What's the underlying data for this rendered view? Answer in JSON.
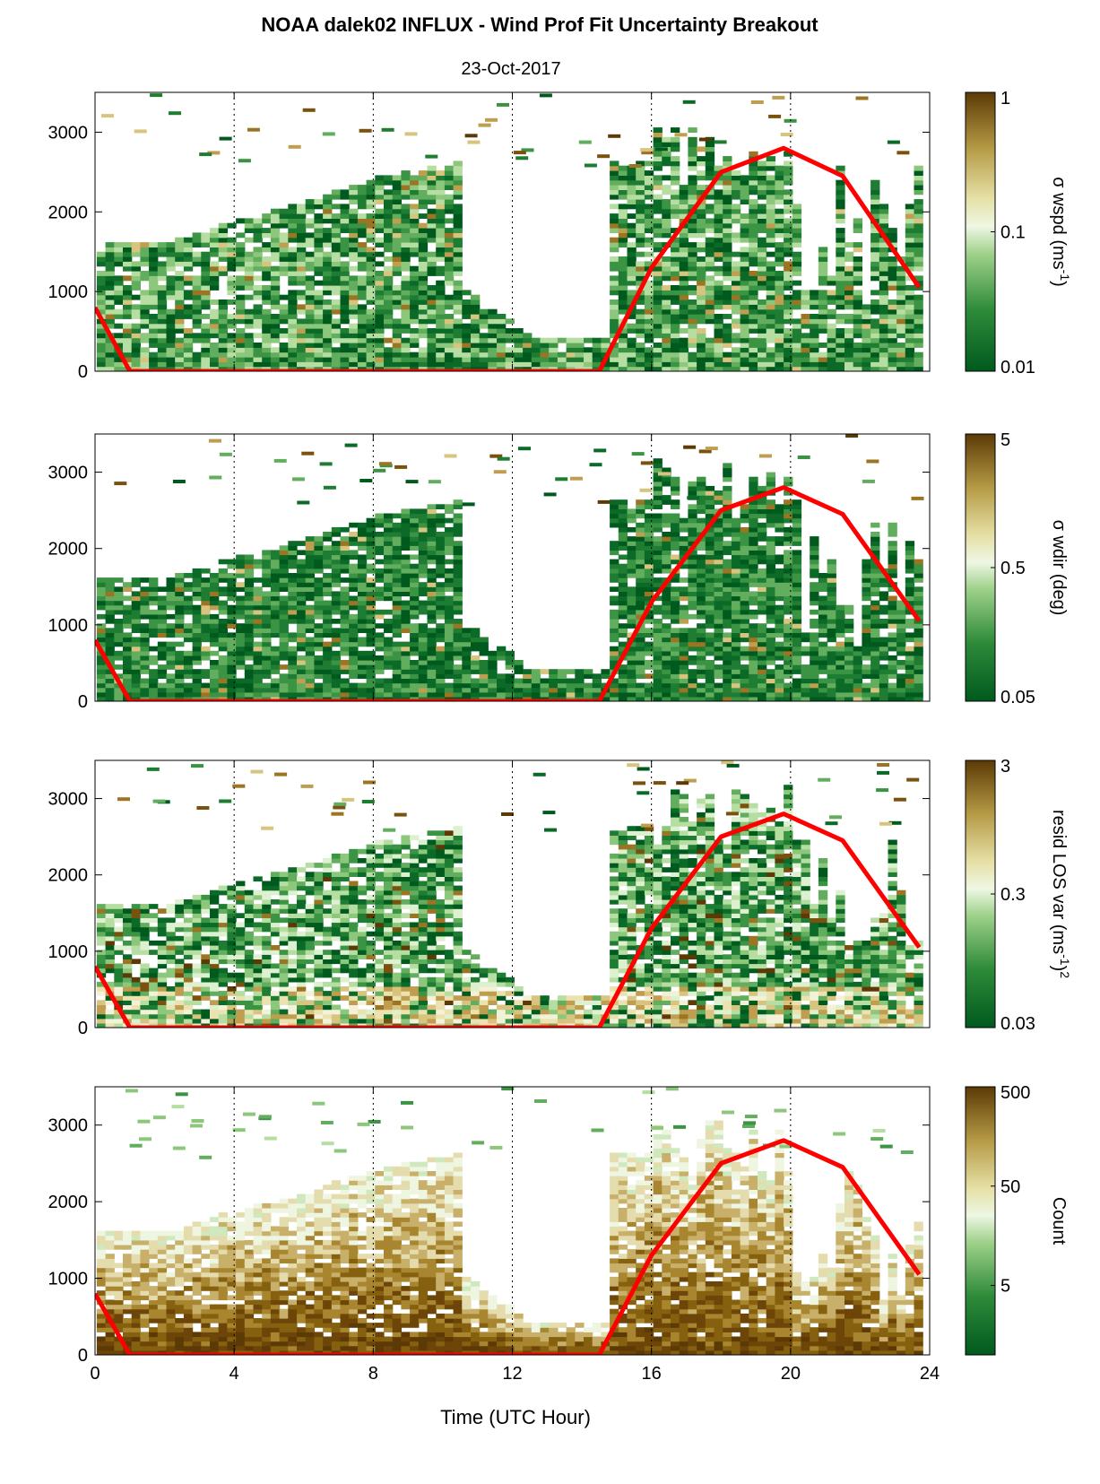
{
  "title": "NOAA dalek02 INFLUX - Wind Prof Fit Uncertainty Breakout",
  "subtitle": "23-Oct-2017",
  "chart_data": [
    {
      "type": "heatmap",
      "xlabel": "Time (UTC Hour)",
      "xlim": [
        0,
        24
      ],
      "x_ticks": [
        "0",
        "4",
        "8",
        "12",
        "16",
        "20",
        "24"
      ],
      "ylim": [
        0,
        3500
      ],
      "y_ticks": [
        "0",
        "1000",
        "2000",
        "3000"
      ],
      "colorbar": {
        "label": "σ wspd (ms",
        "label_sup": "-1",
        "label_end": ")",
        "scale": "log",
        "range": [
          0.01,
          1
        ],
        "ticks": [
          "0.01",
          "0.1",
          "1"
        ]
      },
      "overlay_series": {
        "color": "#ff0000",
        "x": [
          0,
          1,
          14.5,
          16,
          18,
          19.8,
          21.5,
          23.7
        ],
        "y": [
          800,
          0,
          0,
          1300,
          2500,
          2800,
          2450,
          1050
        ]
      }
    },
    {
      "type": "heatmap",
      "xlabel": "Time (UTC Hour)",
      "xlim": [
        0,
        24
      ],
      "x_ticks": [
        "0",
        "4",
        "8",
        "12",
        "16",
        "20",
        "24"
      ],
      "ylim": [
        0,
        3500
      ],
      "y_ticks": [
        "0",
        "1000",
        "2000",
        "3000"
      ],
      "colorbar": {
        "label": "σ wdir (deg)",
        "label_sup": "",
        "label_end": "",
        "scale": "log",
        "range": [
          0.05,
          5
        ],
        "ticks": [
          "0.05",
          "0.5",
          "5"
        ]
      },
      "overlay_series": {
        "color": "#ff0000",
        "x": [
          0,
          1,
          14.5,
          16,
          18,
          19.8,
          21.5,
          23.7
        ],
        "y": [
          800,
          0,
          0,
          1300,
          2500,
          2800,
          2450,
          1050
        ]
      }
    },
    {
      "type": "heatmap",
      "xlabel": "Time (UTC Hour)",
      "xlim": [
        0,
        24
      ],
      "x_ticks": [
        "0",
        "4",
        "8",
        "12",
        "16",
        "20",
        "24"
      ],
      "ylim": [
        0,
        3500
      ],
      "y_ticks": [
        "0",
        "1000",
        "2000",
        "3000"
      ],
      "colorbar": {
        "label": "resid LOS var (ms",
        "label_sup": "-1",
        "label_end": ")",
        "label_sup2": "2",
        "scale": "log",
        "range": [
          0.03,
          3
        ],
        "ticks": [
          "0.03",
          "0.3",
          "3"
        ]
      },
      "overlay_series": {
        "color": "#ff0000",
        "x": [
          0,
          1,
          14.5,
          16,
          18,
          19.8,
          21.5,
          23.7
        ],
        "y": [
          800,
          0,
          0,
          1300,
          2500,
          2800,
          2450,
          1050
        ]
      }
    },
    {
      "type": "heatmap",
      "xlabel": "Time (UTC Hour)",
      "xlim": [
        0,
        24
      ],
      "x_ticks": [
        "0",
        "4",
        "8",
        "12",
        "16",
        "20",
        "24"
      ],
      "ylim": [
        0,
        3500
      ],
      "y_ticks": [
        "0",
        "1000",
        "2000",
        "3000"
      ],
      "colorbar": {
        "label": "Count",
        "label_sup": "",
        "label_end": "",
        "scale": "log",
        "range": [
          1,
          500
        ],
        "ticks": [
          "5",
          "50",
          "500"
        ]
      },
      "overlay_series": {
        "color": "#ff0000",
        "x": [
          0,
          1,
          14.5,
          16,
          18,
          19.8,
          21.5,
          23.7
        ],
        "y": [
          800,
          0,
          0,
          1300,
          2500,
          2800,
          2450,
          1050
        ]
      }
    }
  ]
}
